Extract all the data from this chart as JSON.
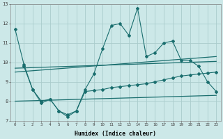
{
  "title": "",
  "xlabel": "Humidex (Indice chaleur)",
  "xlim": [
    -0.5,
    23.5
  ],
  "ylim": [
    7,
    13
  ],
  "yticks": [
    7,
    8,
    9,
    10,
    11,
    12,
    13
  ],
  "xticks": [
    0,
    1,
    2,
    3,
    4,
    5,
    6,
    7,
    8,
    9,
    10,
    11,
    12,
    13,
    14,
    15,
    16,
    17,
    18,
    19,
    20,
    21,
    22,
    23
  ],
  "bg_color": "#cce8e8",
  "grid_color": "#aacccc",
  "line_color": "#1a6e6e",
  "line1_x": [
    0,
    1,
    2,
    3,
    4,
    5,
    6,
    7,
    8,
    9,
    10,
    11,
    12,
    13,
    14,
    15,
    16,
    17,
    18,
    19,
    20,
    21,
    22,
    23
  ],
  "line1_y": [
    11.7,
    9.9,
    8.6,
    7.9,
    8.1,
    7.5,
    7.2,
    7.5,
    8.6,
    9.4,
    10.7,
    11.9,
    12.0,
    11.4,
    12.8,
    10.3,
    10.5,
    11.0,
    11.1,
    10.1,
    10.1,
    9.8,
    9.0,
    8.5
  ],
  "line2_x": [
    1,
    2,
    3,
    4,
    5,
    6,
    7,
    8,
    9,
    10,
    11,
    12,
    13,
    14,
    15,
    16,
    17,
    18,
    19,
    20,
    21,
    22,
    23
  ],
  "line2_y": [
    9.8,
    8.6,
    8.0,
    8.1,
    7.5,
    7.3,
    7.5,
    8.5,
    8.55,
    8.6,
    8.7,
    8.75,
    8.8,
    8.85,
    8.9,
    9.0,
    9.1,
    9.2,
    9.3,
    9.35,
    9.4,
    9.45,
    9.5
  ],
  "trend1_x": [
    0,
    23
  ],
  "trend1_y": [
    9.7,
    10.05
  ],
  "trend2_x": [
    0,
    23
  ],
  "trend2_y": [
    9.5,
    10.3
  ],
  "trend3_x": [
    0,
    23
  ],
  "trend3_y": [
    8.0,
    8.3
  ]
}
